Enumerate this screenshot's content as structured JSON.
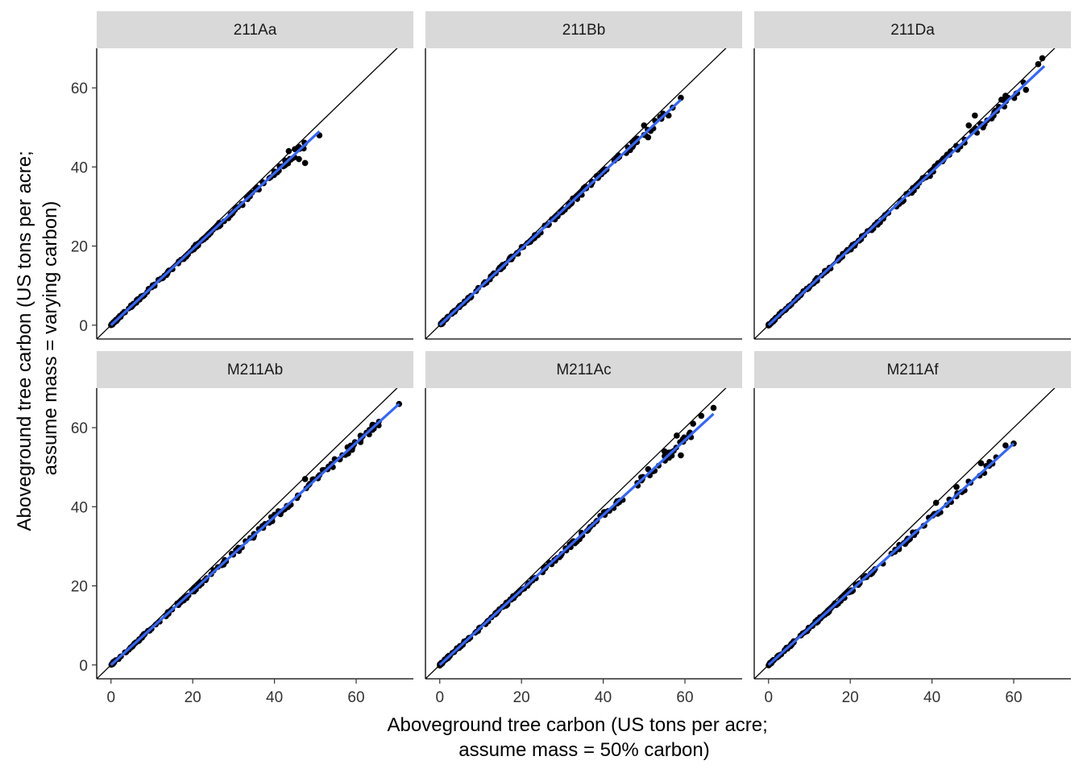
{
  "chart_data": {
    "type": "scatter",
    "facets": [
      "211Aa",
      "211Bb",
      "211Da",
      "M211Ab",
      "M211Ac",
      "M211Af"
    ],
    "xlabel": [
      "Aboveground tree carbon (US tons per acre;",
      "assume mass = 50% carbon)"
    ],
    "ylabel": [
      "Aboveground tree carbon (US tons per acre;",
      "assume mass = varying carbon)"
    ],
    "xlim": [
      -3.5,
      74
    ],
    "ylim": [
      -3.5,
      70
    ],
    "xticks": [
      0,
      20,
      40,
      60
    ],
    "yticks": [
      0,
      20,
      40,
      60
    ],
    "reference_line": "y = x",
    "fit_color": "#3366FF",
    "point_color": "#000000",
    "grid": false,
    "panels": [
      {
        "name": "211Aa",
        "fit": {
          "x": [
            0,
            51
          ],
          "y": [
            0,
            49
          ]
        },
        "x_max": 51,
        "outliers": [
          [
            45,
            44.5
          ],
          [
            46,
            42
          ],
          [
            47.5,
            41
          ],
          [
            51,
            48
          ],
          [
            43.5,
            44
          ]
        ]
      },
      {
        "name": "211Bb",
        "fit": {
          "x": [
            0,
            59
          ],
          "y": [
            0,
            57
          ]
        },
        "x_max": 59,
        "outliers": [
          [
            50,
            50.5
          ],
          [
            51,
            47.5
          ],
          [
            56,
            53
          ],
          [
            57,
            55
          ],
          [
            59,
            57.5
          ]
        ]
      },
      {
        "name": "211Da",
        "fit": {
          "x": [
            0,
            67.5
          ],
          "y": [
            0,
            65.5
          ]
        },
        "x_max": 67.5,
        "outliers": [
          [
            50.5,
            53
          ],
          [
            49,
            50.5
          ],
          [
            55,
            53
          ],
          [
            52.5,
            50
          ],
          [
            58,
            58
          ],
          [
            63,
            59.5
          ],
          [
            66,
            66
          ],
          [
            67,
            67.5
          ],
          [
            57,
            57
          ]
        ]
      },
      {
        "name": "M211Ab",
        "fit": {
          "x": [
            0,
            70.5
          ],
          "y": [
            0,
            66
          ]
        },
        "x_max": 70.5,
        "outliers": [
          [
            47.5,
            47
          ],
          [
            53,
            49.5
          ],
          [
            56,
            52
          ],
          [
            64,
            60
          ],
          [
            70.5,
            66
          ]
        ]
      },
      {
        "name": "M211Ac",
        "fit": {
          "x": [
            0,
            67
          ],
          "y": [
            0,
            63.5
          ]
        },
        "x_max": 67,
        "outliers": [
          [
            51,
            49.5
          ],
          [
            55,
            54
          ],
          [
            58,
            58
          ],
          [
            59,
            53
          ],
          [
            62,
            61
          ],
          [
            64,
            63
          ],
          [
            67,
            65
          ]
        ]
      },
      {
        "name": "M211Af",
        "fit": {
          "x": [
            0,
            60
          ],
          "y": [
            0,
            56
          ]
        },
        "x_max": 60,
        "outliers": [
          [
            41,
            41
          ],
          [
            46,
            45
          ],
          [
            52,
            51
          ],
          [
            58,
            55.5
          ],
          [
            60,
            56
          ]
        ]
      }
    ]
  }
}
